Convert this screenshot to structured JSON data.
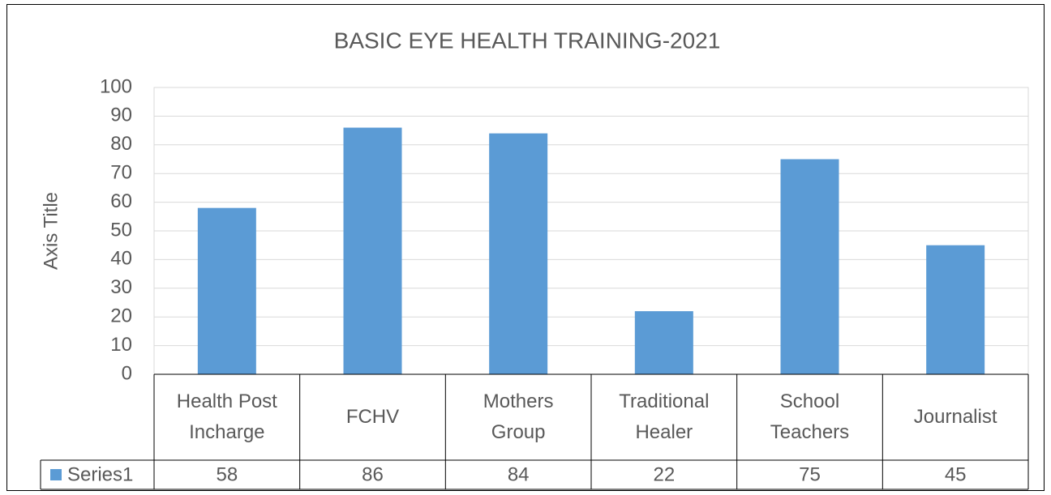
{
  "chart_data": {
    "type": "bar",
    "title": "BASIC EYE HEALTH TRAINING-2021",
    "y_axis_label": "Axis Title",
    "categories": [
      "Health Post Incharge",
      "FCHV",
      "Mothers Group",
      "Traditional Healer",
      "School Teachers",
      "Journalist"
    ],
    "series": [
      {
        "name": "Series1",
        "color": "#5b9bd5",
        "values": [
          58,
          86,
          84,
          22,
          75,
          45
        ]
      }
    ],
    "ylim": [
      0,
      100
    ],
    "yticks": [
      0,
      10,
      20,
      30,
      40,
      50,
      60,
      70,
      80,
      90,
      100
    ],
    "grid": true,
    "data_table": true
  }
}
